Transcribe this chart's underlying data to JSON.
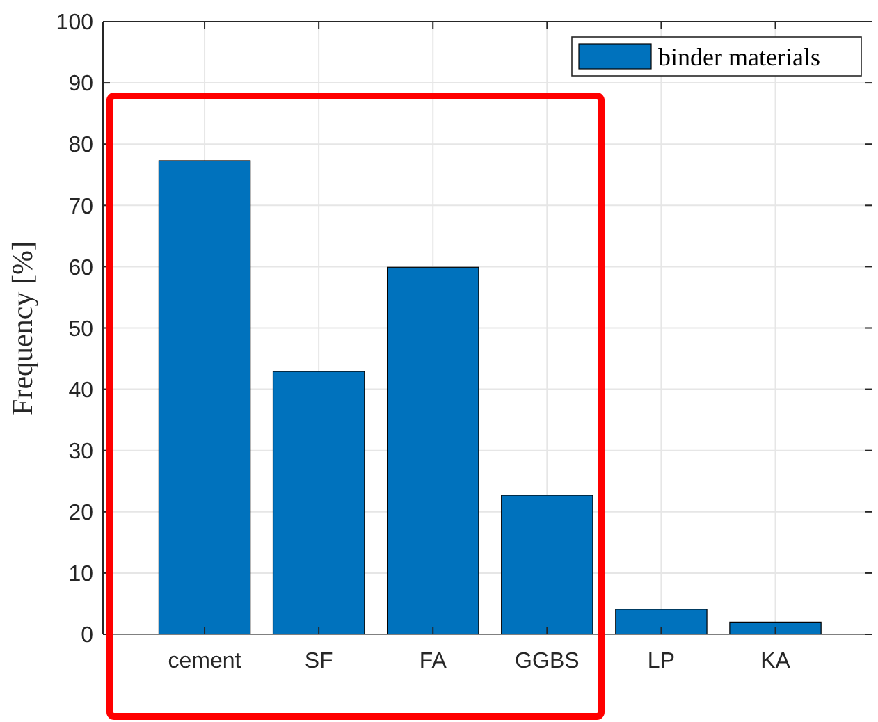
{
  "chart_data": {
    "type": "bar",
    "ylabel": "Frequency [%]",
    "categories": [
      "cement",
      "SF",
      "FA",
      "GGBS",
      "LP",
      "KA"
    ],
    "series": [
      {
        "name": "binder materials",
        "color": "#0072bd",
        "values": [
          77.3,
          42.9,
          59.9,
          22.7,
          4.1,
          2.0
        ]
      }
    ],
    "ylim": [
      0,
      100
    ],
    "yticks": [
      0,
      10,
      20,
      30,
      40,
      50,
      60,
      70,
      80,
      90,
      100
    ],
    "grid": true,
    "legend": "top right"
  }
}
